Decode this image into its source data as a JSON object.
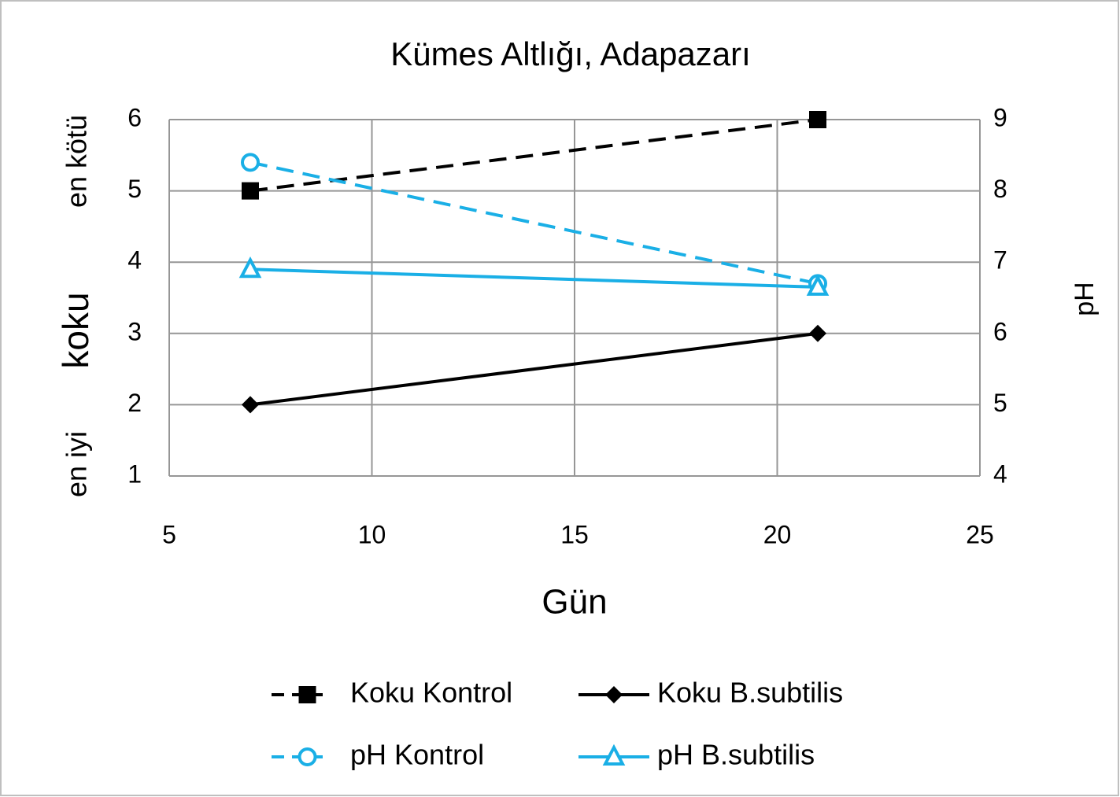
{
  "chart_data": {
    "type": "line",
    "title": "Kümes Altlığı, Adapazarı",
    "x_label": "Gün",
    "y_label": "koku",
    "y2_label": "pH",
    "annotations": [
      "en kötü",
      "en iyi"
    ],
    "x": [
      7,
      21
    ],
    "xlim": [
      5,
      25
    ],
    "xticks": [
      5,
      10,
      15,
      20,
      25
    ],
    "ylim": [
      1,
      6
    ],
    "yticks": [
      1,
      2,
      3,
      4,
      5,
      6
    ],
    "y2lim": [
      4,
      9
    ],
    "y2ticks": [
      4,
      5,
      6,
      7,
      8,
      9
    ],
    "grid": true,
    "legend": "bottom",
    "series": [
      {
        "name": "Koku Kontrol",
        "color": "#000000",
        "dash": true,
        "marker": "square",
        "values": [
          5,
          6
        ]
      },
      {
        "name": "Koku B.subtilis",
        "color": "#000000",
        "dash": false,
        "marker": "diamond",
        "values": [
          2,
          3
        ]
      },
      {
        "name": "pH Kontrol",
        "color": "#1aafe6",
        "dash": true,
        "marker": "circle",
        "axis": "y2",
        "values": [
          8.4,
          6.7
        ]
      },
      {
        "name": "pH B.subtilis",
        "color": "#1aafe6",
        "dash": false,
        "marker": "triangle",
        "axis": "y2",
        "values": [
          6.9,
          6.65
        ]
      }
    ]
  }
}
